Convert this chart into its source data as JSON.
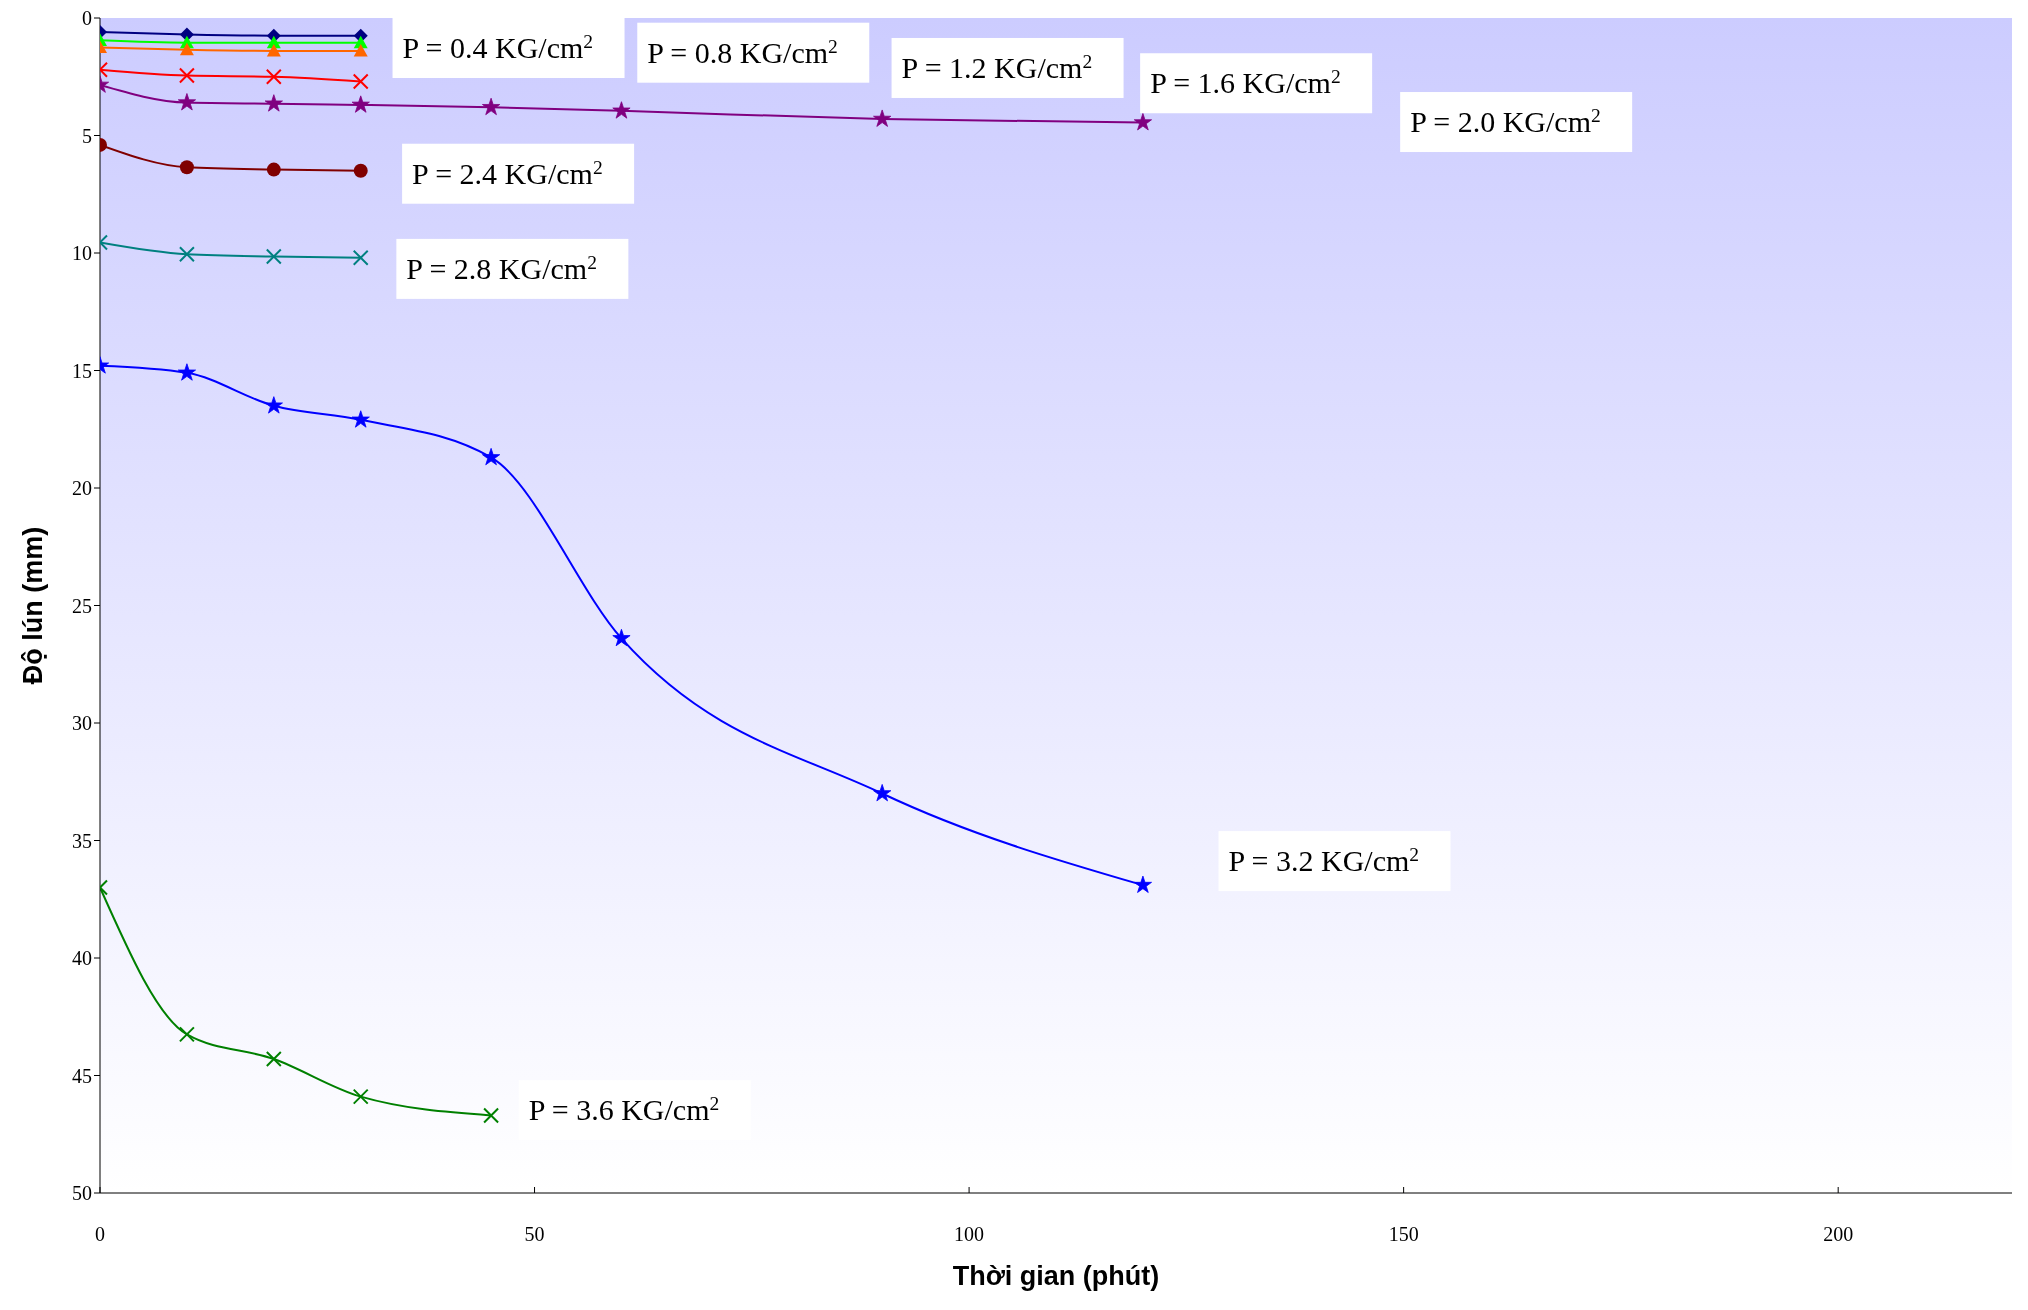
{
  "chart_data": {
    "type": "line",
    "xlabel": "Thời gian (phút)",
    "ylabel": "Độ lún (mm)",
    "xlim": [
      0,
      220
    ],
    "xticks": [
      0,
      50,
      100,
      150,
      200
    ],
    "ylim": [
      50,
      0
    ],
    "yticks": [
      0,
      5,
      10,
      15,
      20,
      25,
      30,
      35,
      40,
      45,
      50
    ],
    "grid": false,
    "legend": false,
    "line_style": "solid",
    "series": [
      {
        "name": "P = 0.4 KG/cm$^{2}$",
        "color": "#000080",
        "marker": "diamond",
        "x": [
          0,
          10,
          20,
          30
        ],
        "values": [
          0.6,
          0.7,
          0.75,
          0.75
        ]
      },
      {
        "name": "P = 0.8 KG/cm$^{2}$",
        "color": "#00ff00",
        "marker": "triangle",
        "x": [
          0,
          10,
          20,
          30
        ],
        "values": [
          0.95,
          1.05,
          1.05,
          1.05
        ]
      },
      {
        "name": "P = 1.2 KG/cm$^{2}$",
        "color": "#ff6600",
        "marker": "triangle",
        "x": [
          0,
          10,
          20,
          30
        ],
        "values": [
          1.25,
          1.35,
          1.4,
          1.4
        ]
      },
      {
        "name": "P = 1.6 KG/cm$^{2}$",
        "color": "#ff0000",
        "marker": "cross",
        "x": [
          0,
          10,
          20,
          30
        ],
        "values": [
          2.2,
          2.45,
          2.5,
          2.7
        ]
      },
      {
        "name": "P = 2.0 KG/cm$^{2}$",
        "color": "#800080",
        "marker": "star",
        "x": [
          0,
          10,
          20,
          30,
          45,
          60,
          90,
          120
        ],
        "values": [
          2.85,
          3.6,
          3.65,
          3.7,
          3.8,
          3.95,
          4.3,
          4.45
        ]
      },
      {
        "name": "P = 2.4 KG/cm$^{2}$",
        "color": "#800000",
        "marker": "circle",
        "x": [
          0,
          10,
          20,
          30
        ],
        "values": [
          5.4,
          6.35,
          6.45,
          6.5
        ]
      },
      {
        "name": "P = 2.8 KG/cm$^{2}$",
        "color": "#008080",
        "marker": "cross",
        "x": [
          0,
          10,
          20,
          30
        ],
        "values": [
          9.55,
          10.05,
          10.15,
          10.2
        ]
      },
      {
        "name": "P = 3.2 KG/cm$^{2}$",
        "color": "#0000ff",
        "marker": "star",
        "x": [
          0,
          10,
          20,
          30,
          45,
          60,
          90,
          120
        ],
        "values": [
          14.8,
          15.1,
          16.5,
          17.1,
          18.7,
          26.4,
          33.0,
          36.9
        ]
      },
      {
        "name": "P = 3.6 KG/cm$^{2}$",
        "color": "#008000",
        "marker": "cross",
        "x": [
          0,
          10,
          20,
          30,
          45
        ],
        "values": [
          37.0,
          43.25,
          44.3,
          45.9,
          46.7
        ]
      }
    ]
  }
}
